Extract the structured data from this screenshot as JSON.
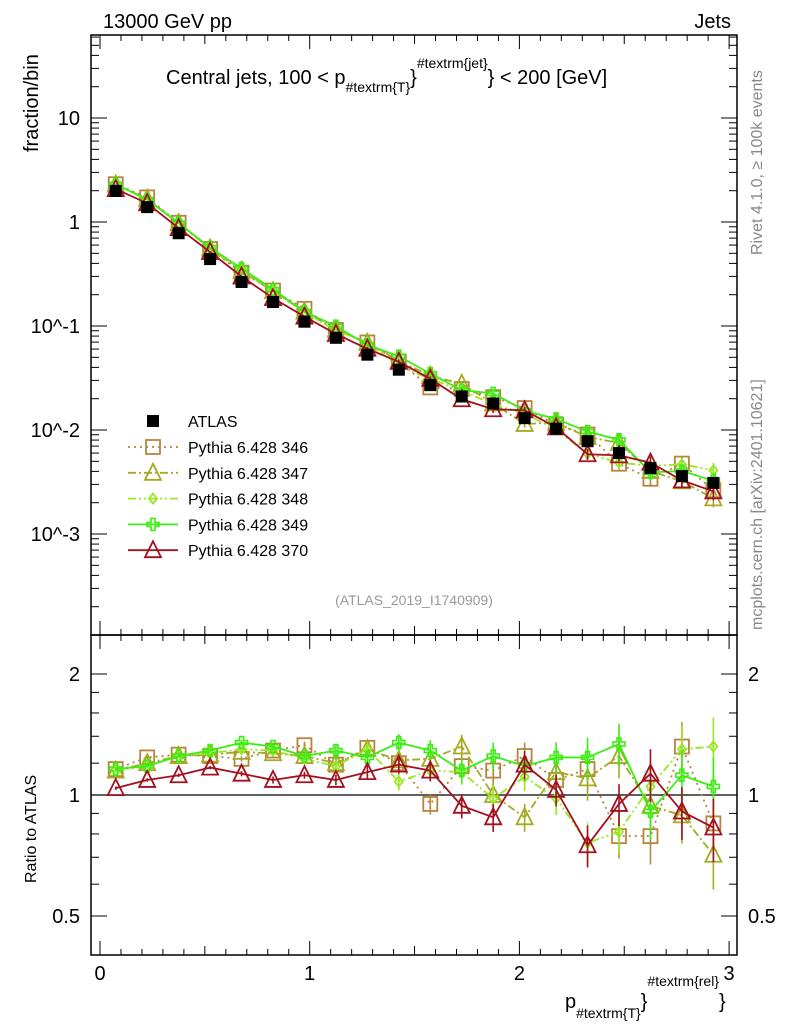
{
  "header": {
    "left": "13000 GeV pp",
    "right": "Jets"
  },
  "side_labels": {
    "rivet": "Rivet 4.1.0, ≥ 100k events",
    "mcplots": "mcplots.cern.ch [arXiv:2401.10621]"
  },
  "analysis_id": "(ATLAS_2019_I1740909)",
  "chart_data": {
    "type": "line",
    "title": {
      "main": "Central jets, 100 < p",
      "sub": "#textrm{T}",
      "brace": "}",
      "sup": "#textrm{jet}",
      "rest": "} < 200 [GeV]"
    },
    "xlabel": {
      "main": "p",
      "sub": "#textrm{T}",
      "brace": "}",
      "sup": "#textrm{rel}",
      "end": "}"
    },
    "ylabel": "fraction/bin",
    "ratio_ylabel": "Ratio to ATLAS",
    "xlim": [
      0,
      3.05
    ],
    "ylim": [
      0.000107,
      63
    ],
    "ratio_ylim": [
      0.4,
      2.5
    ],
    "x_ticks": [
      "0",
      "1",
      "2",
      "3"
    ],
    "y_ticks": [
      "10",
      "1",
      "10^-1",
      "10^-2",
      "10^-3"
    ],
    "ratio_ticks": [
      "0.5",
      "1",
      "2"
    ],
    "x": [
      0.075,
      0.225,
      0.375,
      0.525,
      0.675,
      0.825,
      0.975,
      1.125,
      1.275,
      1.425,
      1.575,
      1.725,
      1.875,
      2.025,
      2.175,
      2.325,
      2.475,
      2.625,
      2.775,
      2.925
    ],
    "data": {
      "name": "ATLAS",
      "values": [
        1.99,
        1.39,
        0.78,
        0.44,
        0.265,
        0.17,
        0.11,
        0.077,
        0.053,
        0.038,
        0.027,
        0.021,
        0.018,
        0.013,
        0.0103,
        0.0078,
        0.006,
        0.0043,
        0.0036,
        0.0031
      ]
    },
    "mc_rel_errors": [
      0.01,
      0.01,
      0.01,
      0.01,
      0.015,
      0.02,
      0.02,
      0.03,
      0.04,
      0.05,
      0.06,
      0.07,
      0.08,
      0.08,
      0.09,
      0.12,
      0.12,
      0.15,
      0.15,
      0.18
    ],
    "series": [
      {
        "name": "Pythia 6.428 346",
        "color": "#b8843c",
        "dash": "2,4",
        "marker": "square",
        "ratio": [
          1.16,
          1.24,
          1.26,
          1.25,
          1.23,
          1.29,
          1.33,
          1.19,
          1.31,
          1.2,
          0.95,
          1.18,
          1.15,
          1.25,
          1.09,
          1.16,
          0.79,
          0.79,
          1.32,
          0.85
        ]
      },
      {
        "name": "Pythia 6.428 347",
        "color": "#a4aa22",
        "dash": "8,3,2,3",
        "marker": "triangle",
        "ratio": [
          1.15,
          1.2,
          1.25,
          1.26,
          1.28,
          1.27,
          1.25,
          1.2,
          1.3,
          1.22,
          1.23,
          1.32,
          1.0,
          0.88,
          1.14,
          1.1,
          1.25,
          0.94,
          0.89,
          0.71
        ]
      },
      {
        "name": "Pythia 6.428 348",
        "color": "#99e822",
        "dash": "8,3,2,3,2,3",
        "marker": "diamond",
        "ratio": [
          1.15,
          1.18,
          1.25,
          1.27,
          1.3,
          1.29,
          1.23,
          1.18,
          1.3,
          1.08,
          1.15,
          1.14,
          0.98,
          1.11,
          0.98,
          0.76,
          0.81,
          1.05,
          1.3,
          1.32
        ]
      },
      {
        "name": "Pythia 6.428 349",
        "color": "#3ced12",
        "dash": "",
        "marker": "cross",
        "ratio": [
          1.16,
          1.18,
          1.25,
          1.29,
          1.35,
          1.32,
          1.25,
          1.29,
          1.24,
          1.35,
          1.29,
          1.15,
          1.25,
          1.18,
          1.24,
          1.24,
          1.34,
          0.91,
          1.12,
          1.05
        ]
      },
      {
        "name": "Pythia 6.428 370",
        "color": "#a3101e",
        "dash": "",
        "marker": "triangle",
        "ratio": [
          1.04,
          1.09,
          1.12,
          1.17,
          1.13,
          1.09,
          1.12,
          1.09,
          1.14,
          1.19,
          1.15,
          0.94,
          0.88,
          1.19,
          1.03,
          0.75,
          0.95,
          1.13,
          0.91,
          0.83
        ]
      }
    ],
    "legend_position": "bottom-left",
    "grid": false
  }
}
